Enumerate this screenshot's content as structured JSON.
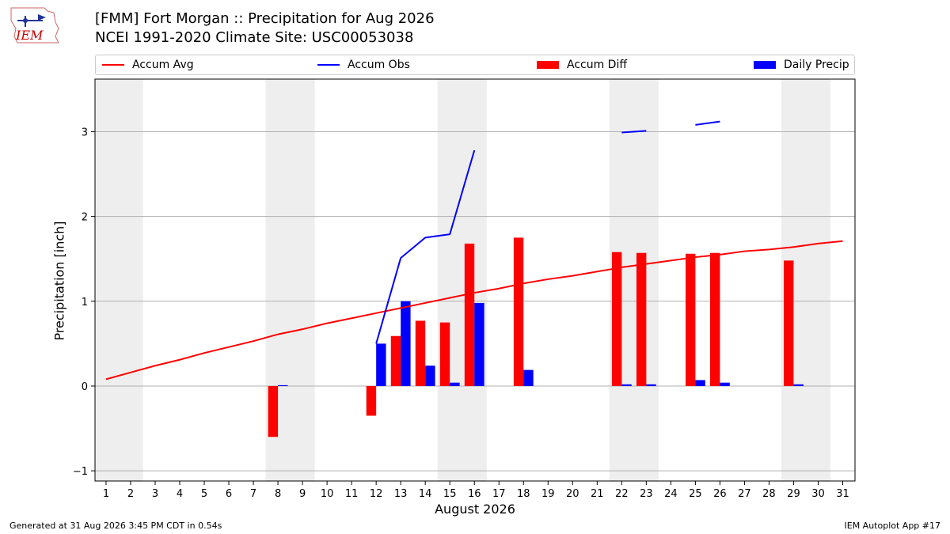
{
  "logo": {
    "text": "IEM",
    "color": "#cc0000"
  },
  "header": {
    "title_line1": "[FMM] Fort Morgan :: Precipitation for Aug 2026",
    "title_line2": "NCEI 1991-2020 Climate Site: USC00053038"
  },
  "legend": {
    "items": [
      {
        "label": "Accum Avg",
        "kind": "line",
        "color": "#ff0000"
      },
      {
        "label": "Accum Obs",
        "kind": "line",
        "color": "#0000ff"
      },
      {
        "label": "Accum Diff",
        "kind": "bar",
        "color": "#ff0000"
      },
      {
        "label": "Daily Precip",
        "kind": "bar",
        "color": "#0000ff"
      }
    ],
    "placement": "top"
  },
  "chart_data": {
    "type": "bar",
    "xlabel": "August 2026",
    "ylabel": "Precipitation [inch]",
    "ylim": [
      -1.12,
      3.62
    ],
    "xlim": [
      0.55,
      31.5
    ],
    "yticks": [
      -1,
      0,
      1,
      2,
      3
    ],
    "ytick_labels": [
      "−1",
      "0",
      "1",
      "2",
      "3"
    ],
    "xticks": [
      1,
      2,
      3,
      4,
      5,
      6,
      7,
      8,
      9,
      10,
      11,
      12,
      13,
      14,
      15,
      16,
      17,
      18,
      19,
      20,
      21,
      22,
      23,
      24,
      25,
      26,
      27,
      28,
      29,
      30,
      31
    ],
    "grid": "horizontal",
    "weekend_shading": [
      [
        1,
        2
      ],
      [
        8,
        9
      ],
      [
        15,
        16
      ],
      [
        22,
        23
      ],
      [
        29,
        30
      ]
    ],
    "weekend_color": "#eeeeee",
    "series": [
      {
        "name": "Accum Avg",
        "kind": "line",
        "color": "#ff0000",
        "x": [
          1,
          2,
          3,
          4,
          5,
          6,
          7,
          8,
          9,
          10,
          11,
          12,
          13,
          14,
          15,
          16,
          17,
          18,
          19,
          20,
          21,
          22,
          23,
          24,
          25,
          26,
          27,
          28,
          29,
          30,
          31
        ],
        "y": [
          0.08,
          0.16,
          0.24,
          0.31,
          0.39,
          0.46,
          0.53,
          0.61,
          0.67,
          0.74,
          0.8,
          0.86,
          0.92,
          0.98,
          1.04,
          1.1,
          1.15,
          1.21,
          1.26,
          1.3,
          1.35,
          1.4,
          1.44,
          1.48,
          1.52,
          1.55,
          1.59,
          1.61,
          1.64,
          1.68,
          1.71
        ]
      },
      {
        "name": "Accum Obs",
        "kind": "line",
        "color": "#0000ff",
        "segments": [
          {
            "x": [
              12,
              13,
              14,
              15,
              16
            ],
            "y": [
              0.5,
              1.51,
              1.75,
              1.79,
              2.78
            ]
          },
          {
            "x": [
              22,
              23
            ],
            "y": [
              2.99,
              3.01
            ]
          },
          {
            "x": [
              25,
              26
            ],
            "y": [
              3.08,
              3.12
            ]
          }
        ]
      },
      {
        "name": "Accum Diff",
        "kind": "bar",
        "color": "#ff0000",
        "x": [
          8,
          12,
          13,
          14,
          15,
          16,
          18,
          22,
          23,
          25,
          26,
          29
        ],
        "values": [
          -0.6,
          -0.35,
          0.59,
          0.77,
          0.75,
          1.68,
          1.75,
          1.58,
          1.57,
          1.56,
          1.57,
          1.48
        ]
      },
      {
        "name": "Daily Precip",
        "kind": "bar",
        "color": "#0000ff",
        "x": [
          8,
          12,
          13,
          14,
          15,
          16,
          18,
          22,
          23,
          25,
          26,
          29
        ],
        "values": [
          0.01,
          0.5,
          1.0,
          0.24,
          0.04,
          0.98,
          0.19,
          0.02,
          0.02,
          0.07,
          0.04,
          0.02
        ]
      }
    ]
  },
  "footer": {
    "generated": "Generated at 31 Aug 2026 3:45 PM CDT in 0.54s",
    "app": "IEM Autoplot App #17"
  }
}
